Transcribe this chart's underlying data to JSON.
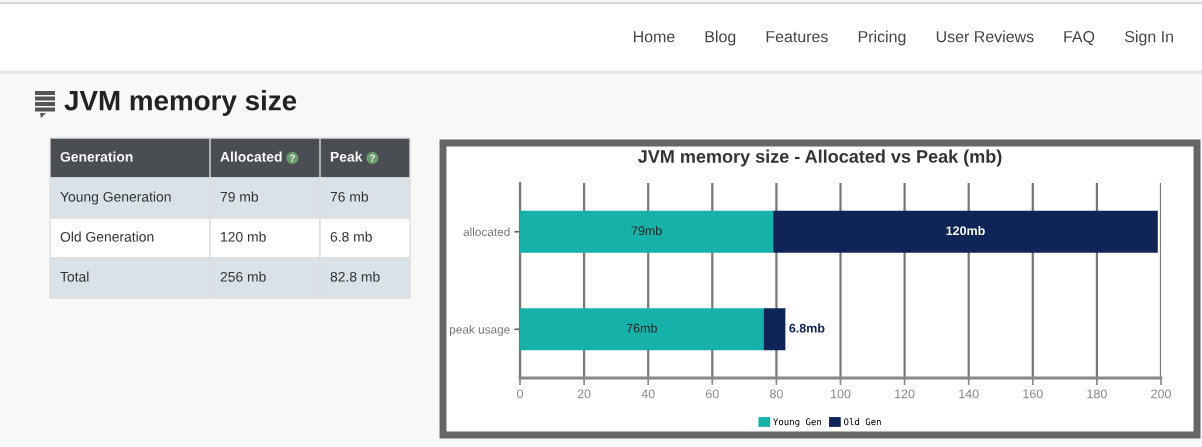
{
  "chart_data": [
    {
      "type": "other",
      "title": "JVM memory size",
      "annotations": [
        "Home",
        "Blog",
        "Features",
        "Pricing",
        "User Reviews",
        "FAQ",
        "Sign In"
      ],
      "ylabel": "Generation",
      "categories": [
        "Allocated",
        "Peak"
      ],
      "y_categories": [
        "Young Generation",
        "Old Generation",
        "Total"
      ],
      "cell_labels": [
        [
          "79 mb",
          "76 mb"
        ],
        [
          "120 mb",
          "6.8 mb"
        ],
        [
          "256 mb",
          "82.8 mb"
        ]
      ]
    },
    {
      "type": "bar",
      "orientation": "horizontal",
      "stacked": true,
      "title": "JVM memory size - Allocated vs Peak (mb)",
      "categories": [
        "allocated",
        "peak usage"
      ],
      "series": [
        {
          "name": "Young Gen",
          "color": "#16b1a9",
          "values": [
            79,
            76
          ],
          "value_labels": [
            "79mb",
            "76mb"
          ]
        },
        {
          "name": "Old Gen",
          "color": "#0f2557",
          "values": [
            120,
            6.8
          ],
          "value_labels": [
            "120mb",
            "6.8mb"
          ]
        }
      ],
      "xlim": [
        0,
        200
      ],
      "xticks": [
        0,
        20,
        40,
        60,
        80,
        100,
        120,
        140,
        160,
        180,
        200
      ],
      "grid": "x",
      "legend": "bottom"
    }
  ]
}
